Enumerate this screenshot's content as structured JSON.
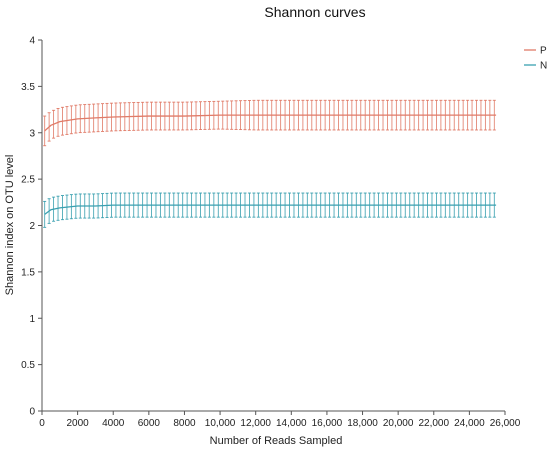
{
  "chart_data": {
    "type": "line",
    "title": "Shannon curves",
    "xlabel": "Number of Reads Sampled",
    "ylabel": "Shannon index on OTU level",
    "xlim": [
      0,
      26000
    ],
    "ylim": [
      0,
      4
    ],
    "xticks": [
      0,
      2000,
      4000,
      6000,
      8000,
      10000,
      12000,
      14000,
      16000,
      18000,
      20000,
      22000,
      24000,
      26000
    ],
    "xtick_labels": [
      "0",
      "2000",
      "4000",
      "6000",
      "8000",
      "10,000",
      "12,000",
      "14,000",
      "16,000",
      "18,000",
      "20,000",
      "22,000",
      "24,000",
      "26,000"
    ],
    "yticks": [
      0,
      0.5,
      1,
      1.5,
      2,
      2.5,
      3,
      3.5,
      4
    ],
    "ytick_labels": [
      "0",
      "0.5",
      "1",
      "1.5",
      "2",
      "2.5",
      "3",
      "3.5",
      "4"
    ],
    "grid": false,
    "legend_position": "top-right",
    "series": [
      {
        "name": "P",
        "color": "#e07b68",
        "x": [
          150,
          500,
          1000,
          2000,
          3000,
          4000,
          6000,
          8000,
          10000,
          12000,
          14000,
          16000,
          18000,
          20000,
          22000,
          24000,
          25500
        ],
        "y": [
          3.02,
          3.08,
          3.12,
          3.15,
          3.16,
          3.17,
          3.18,
          3.18,
          3.19,
          3.19,
          3.19,
          3.19,
          3.19,
          3.19,
          3.19,
          3.19,
          3.19
        ],
        "err": [
          0.16,
          0.15,
          0.15,
          0.15,
          0.15,
          0.15,
          0.15,
          0.15,
          0.15,
          0.16,
          0.16,
          0.16,
          0.16,
          0.16,
          0.16,
          0.16,
          0.16
        ]
      },
      {
        "name": "N",
        "color": "#3aa0b0",
        "x": [
          150,
          500,
          1000,
          2000,
          3000,
          4000,
          6000,
          8000,
          10000,
          12000,
          14000,
          16000,
          18000,
          20000,
          22000,
          24000,
          25500
        ],
        "y": [
          2.12,
          2.17,
          2.19,
          2.21,
          2.21,
          2.22,
          2.22,
          2.22,
          2.22,
          2.22,
          2.22,
          2.22,
          2.22,
          2.22,
          2.22,
          2.22,
          2.22
        ],
        "err": [
          0.14,
          0.13,
          0.13,
          0.13,
          0.13,
          0.13,
          0.13,
          0.13,
          0.13,
          0.13,
          0.13,
          0.13,
          0.13,
          0.13,
          0.13,
          0.13,
          0.13
        ]
      }
    ]
  }
}
